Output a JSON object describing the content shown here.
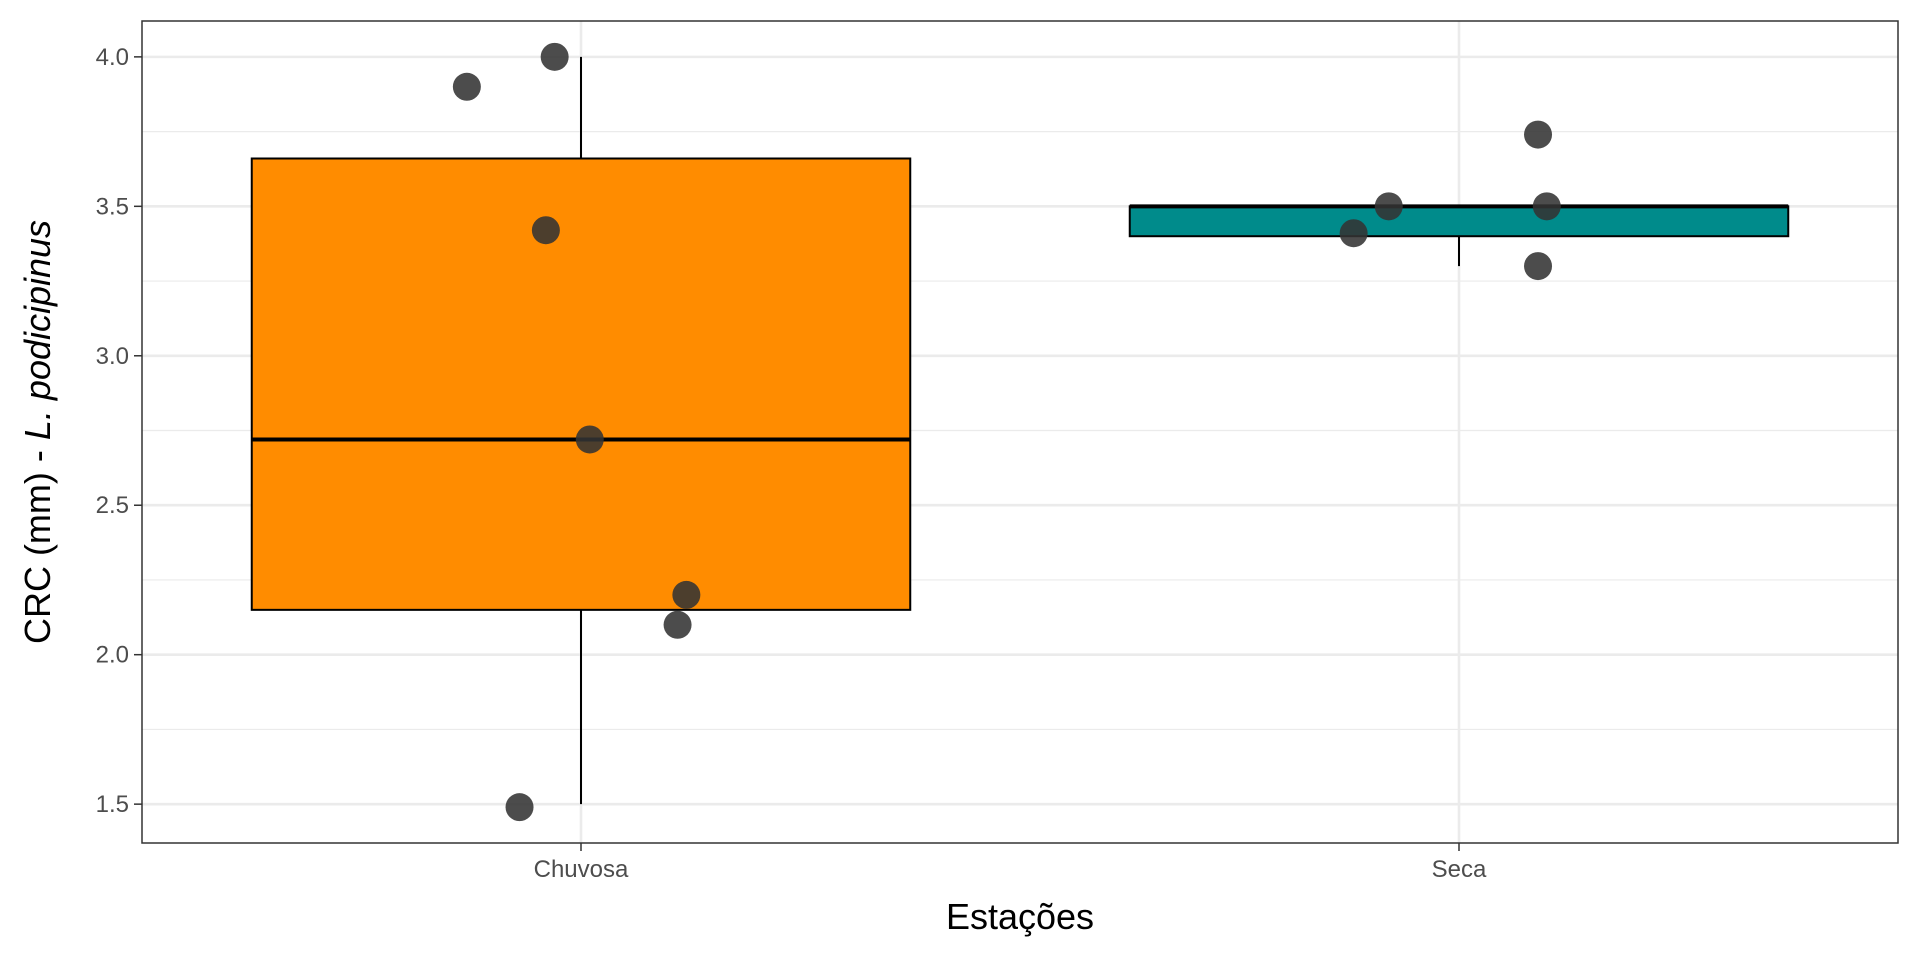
{
  "chart_data": {
    "type": "boxplot",
    "xlabel": "Estações",
    "ylabel": {
      "prefix": "CRC (mm) - ",
      "italic": "L. podicipinus"
    },
    "ylim": [
      1.37,
      4.12
    ],
    "yticks": [
      1.5,
      2.0,
      2.5,
      3.0,
      3.5,
      4.0
    ],
    "ytick_labels": [
      "1.5",
      "2.0",
      "2.5",
      "3.0",
      "3.5",
      "4.0"
    ],
    "categories": [
      "Chuvosa",
      "Seca"
    ],
    "grid": true,
    "legend": "none",
    "boxes": [
      {
        "category": "Chuvosa",
        "q1": 2.15,
        "median": 2.72,
        "q3": 3.66,
        "whisker_low": 1.5,
        "whisker_high": 4.0,
        "fill": "#FF8C00"
      },
      {
        "category": "Seca",
        "q1": 3.4,
        "median": 3.5,
        "q3": 3.5,
        "whisker_low": 3.3,
        "whisker_high": 3.5,
        "fill": "#008B8B"
      }
    ],
    "points": [
      {
        "category": "Chuvosa",
        "jitter": -0.13,
        "y": 3.9
      },
      {
        "category": "Chuvosa",
        "jitter": -0.03,
        "y": 4.0
      },
      {
        "category": "Chuvosa",
        "jitter": -0.04,
        "y": 3.42
      },
      {
        "category": "Chuvosa",
        "jitter": 0.01,
        "y": 2.72
      },
      {
        "category": "Chuvosa",
        "jitter": 0.12,
        "y": 2.2
      },
      {
        "category": "Chuvosa",
        "jitter": 0.11,
        "y": 2.1
      },
      {
        "category": "Chuvosa",
        "jitter": -0.07,
        "y": 1.49
      },
      {
        "category": "Seca",
        "jitter": 0.09,
        "y": 3.74
      },
      {
        "category": "Seca",
        "jitter": -0.08,
        "y": 3.5
      },
      {
        "category": "Seca",
        "jitter": 0.1,
        "y": 3.5
      },
      {
        "category": "Seca",
        "jitter": -0.12,
        "y": 3.41
      },
      {
        "category": "Seca",
        "jitter": 0.09,
        "y": 3.3
      }
    ],
    "point_color": "#333333"
  }
}
